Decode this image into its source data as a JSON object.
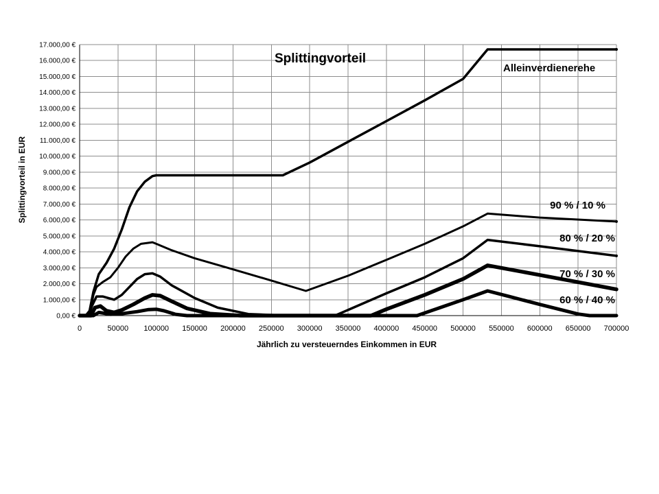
{
  "chart_data": {
    "type": "line",
    "title": "Splittingvorteil",
    "xlabel": "Jährlich zu versteuerndes Einkommen in EUR",
    "ylabel": "Splittingvorteil in EUR",
    "xlim": [
      0,
      700000
    ],
    "ylim": [
      0,
      17000
    ],
    "x_ticks": [
      "0",
      "50000",
      "100000",
      "150000",
      "200000",
      "250000",
      "300000",
      "350000",
      "400000",
      "450000",
      "500000",
      "550000",
      "600000",
      "650000",
      "700000"
    ],
    "y_ticks": [
      "0,00 €",
      "1.000,00 €",
      "2.000,00 €",
      "3.000,00 €",
      "4.000,00 €",
      "5.000,00 €",
      "6.000,00 €",
      "7.000,00 €",
      "8.000,00 €",
      "9.000,00 €",
      "10.000,00 €",
      "11.000,00 €",
      "12.000,00 €",
      "13.000,00 €",
      "14.000,00 €",
      "15.000,00 €",
      "16.000,00 €",
      "17.000,00 €"
    ],
    "grid": true,
    "legend": "none",
    "series": [
      {
        "name": "Alleinverdienerehe",
        "points": [
          [
            0,
            0
          ],
          [
            8000,
            0
          ],
          [
            13000,
            300
          ],
          [
            18000,
            1500
          ],
          [
            25000,
            2600
          ],
          [
            35000,
            3300
          ],
          [
            45000,
            4200
          ],
          [
            55000,
            5400
          ],
          [
            65000,
            6800
          ],
          [
            75000,
            7800
          ],
          [
            85000,
            8400
          ],
          [
            95000,
            8750
          ],
          [
            100000,
            8800
          ],
          [
            150000,
            8800
          ],
          [
            200000,
            8800
          ],
          [
            265000,
            8800
          ],
          [
            300000,
            9600
          ],
          [
            350000,
            10900
          ],
          [
            400000,
            12200
          ],
          [
            450000,
            13500
          ],
          [
            500000,
            14850
          ],
          [
            532000,
            16700
          ],
          [
            600000,
            16700
          ],
          [
            700000,
            16700
          ]
        ]
      },
      {
        "name": "90 % / 10 %",
        "points": [
          [
            0,
            0
          ],
          [
            10000,
            0
          ],
          [
            14000,
            300
          ],
          [
            18000,
            1300
          ],
          [
            22000,
            1800
          ],
          [
            30000,
            2100
          ],
          [
            40000,
            2400
          ],
          [
            50000,
            3000
          ],
          [
            60000,
            3700
          ],
          [
            70000,
            4200
          ],
          [
            80000,
            4500
          ],
          [
            95000,
            4600
          ],
          [
            100000,
            4500
          ],
          [
            120000,
            4100
          ],
          [
            150000,
            3600
          ],
          [
            200000,
            2900
          ],
          [
            250000,
            2200
          ],
          [
            295000,
            1550
          ],
          [
            350000,
            2500
          ],
          [
            400000,
            3500
          ],
          [
            450000,
            4500
          ],
          [
            500000,
            5600
          ],
          [
            532000,
            6400
          ],
          [
            600000,
            6150
          ],
          [
            700000,
            5900
          ]
        ]
      },
      {
        "name": "80 % / 20 %",
        "points": [
          [
            0,
            0
          ],
          [
            12000,
            0
          ],
          [
            16000,
            600
          ],
          [
            22000,
            1200
          ],
          [
            30000,
            1200
          ],
          [
            45000,
            1000
          ],
          [
            55000,
            1300
          ],
          [
            65000,
            1800
          ],
          [
            75000,
            2300
          ],
          [
            85000,
            2600
          ],
          [
            95000,
            2650
          ],
          [
            105000,
            2450
          ],
          [
            120000,
            1900
          ],
          [
            150000,
            1100
          ],
          [
            180000,
            500
          ],
          [
            220000,
            100
          ],
          [
            270000,
            0
          ],
          [
            333000,
            0
          ],
          [
            400000,
            1400
          ],
          [
            450000,
            2400
          ],
          [
            500000,
            3600
          ],
          [
            532000,
            4750
          ],
          [
            600000,
            4350
          ],
          [
            700000,
            3750
          ]
        ]
      },
      {
        "name": "70 % / 30 %",
        "points": [
          [
            0,
            0
          ],
          [
            15000,
            0
          ],
          [
            20000,
            500
          ],
          [
            27000,
            600
          ],
          [
            35000,
            300
          ],
          [
            45000,
            200
          ],
          [
            55000,
            350
          ],
          [
            70000,
            700
          ],
          [
            85000,
            1100
          ],
          [
            95000,
            1300
          ],
          [
            105000,
            1250
          ],
          [
            120000,
            900
          ],
          [
            140000,
            450
          ],
          [
            170000,
            120
          ],
          [
            210000,
            0
          ],
          [
            380000,
            0
          ],
          [
            400000,
            400
          ],
          [
            450000,
            1300
          ],
          [
            500000,
            2300
          ],
          [
            532000,
            3150
          ],
          [
            600000,
            2550
          ],
          [
            700000,
            1650
          ]
        ]
      },
      {
        "name": "60 % / 40 %",
        "points": [
          [
            0,
            0
          ],
          [
            18000,
            0
          ],
          [
            25000,
            200
          ],
          [
            32000,
            150
          ],
          [
            40000,
            80
          ],
          [
            55000,
            120
          ],
          [
            75000,
            250
          ],
          [
            90000,
            380
          ],
          [
            100000,
            400
          ],
          [
            110000,
            300
          ],
          [
            125000,
            80
          ],
          [
            140000,
            0
          ],
          [
            440000,
            0
          ],
          [
            470000,
            500
          ],
          [
            500000,
            1000
          ],
          [
            532000,
            1550
          ],
          [
            560000,
            1200
          ],
          [
            600000,
            700
          ],
          [
            650000,
            100
          ],
          [
            665000,
            0
          ],
          [
            700000,
            0
          ]
        ]
      }
    ]
  }
}
